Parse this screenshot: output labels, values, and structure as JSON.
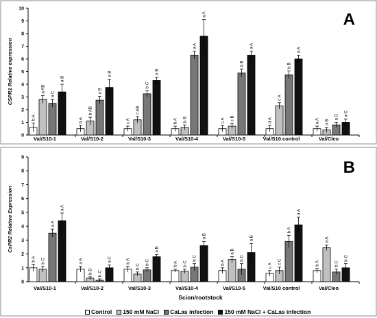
{
  "chart_data": [
    {
      "type": "bar",
      "panel_letter": "A",
      "ylabel": "CSPR1 Relative expression",
      "xlabel": "",
      "ylim": [
        0,
        10
      ],
      "yticks": [
        "0",
        "1",
        "2",
        "3",
        "4",
        "5",
        "6",
        "7",
        "8",
        "9",
        "10"
      ],
      "categories": [
        "Val/S10-1",
        "Val/S10-2",
        "Val/S10-3",
        "Val/S10-4",
        "Val/S10-5",
        "Val/S10 control",
        "Val/Cleo"
      ],
      "series": [
        {
          "name": "Control",
          "values": [
            0.6,
            0.5,
            0.5,
            0.5,
            0.5,
            0.5,
            0.5
          ],
          "errors": [
            0.35,
            0.25,
            0.2,
            0.2,
            0.25,
            0.25,
            0.2
          ],
          "labels": [
            "b A",
            "b A",
            "c A",
            "b A",
            "c A",
            "d A",
            "a A"
          ]
        },
        {
          "name": "150 mM NaCl",
          "values": [
            2.8,
            1.1,
            1.2,
            0.6,
            0.7,
            2.3,
            0.4
          ],
          "errors": [
            0.3,
            0.3,
            0.25,
            0.2,
            0.2,
            0.25,
            0.2
          ],
          "labels": [
            "a AB",
            "b AB",
            "c AB",
            "b B",
            "c B",
            "c A",
            "a B"
          ]
        },
        {
          "name": "CaLas infection",
          "values": [
            2.5,
            2.75,
            3.25,
            6.3,
            4.9,
            4.75,
            0.8
          ],
          "errors": [
            0.3,
            0.3,
            0.25,
            0.3,
            0.3,
            0.3,
            0.2
          ],
          "labels": [
            "a C",
            "a B",
            "b C",
            "a A",
            "b B",
            "b B",
            "a D"
          ]
        },
        {
          "name": "150 mM NaCl + CaLas infection",
          "values": [
            3.4,
            3.75,
            4.3,
            7.8,
            6.3,
            6.0,
            1.0
          ],
          "errors": [
            0.6,
            0.65,
            0.25,
            1.3,
            0.3,
            0.3,
            0.25
          ],
          "labels": [
            "a B",
            "a B",
            "a B",
            "a A",
            "a A",
            "a A",
            "a C"
          ]
        }
      ]
    },
    {
      "type": "bar",
      "panel_letter": "B",
      "ylabel": "CsPR2 Relative Expression",
      "xlabel": "Scion/rootstock",
      "ylim": [
        0,
        9
      ],
      "yticks": [
        "0",
        "1",
        "2",
        "3",
        "4",
        "5",
        "6",
        "7",
        "8",
        "9"
      ],
      "categories": [
        "Val/S10-1",
        "Val/S10-2",
        "Val/S10-3",
        "Val/S10-4",
        "Val/S10-5",
        "Val/S10 control",
        "Val/Cleo"
      ],
      "series": [
        {
          "name": "Control",
          "values": [
            1.0,
            0.9,
            0.9,
            0.8,
            0.8,
            0.6,
            0.8
          ],
          "errors": [
            0.25,
            0.2,
            0.2,
            0.1,
            0.2,
            0.2,
            0.15
          ],
          "labels": [
            "b A",
            "a A",
            "b A",
            "b A",
            "b A",
            "c A",
            "b A"
          ]
        },
        {
          "name": "150 mM NaCl",
          "values": [
            0.9,
            0.25,
            0.55,
            0.75,
            1.6,
            0.8,
            2.45
          ],
          "errors": [
            0.2,
            0.1,
            0.15,
            0.15,
            0.2,
            0.25,
            0.2
          ],
          "labels": [
            "b C",
            "b D",
            "b C",
            "b C",
            "a B",
            "c C",
            "a A"
          ]
        },
        {
          "name": "CaLas infection",
          "values": [
            3.5,
            0.1,
            0.85,
            1.05,
            0.9,
            2.9,
            0.7
          ],
          "errors": [
            0.3,
            0.1,
            0.15,
            0.25,
            0.4,
            0.45,
            0.2
          ],
          "labels": [
            "a A",
            "b C",
            "b C",
            "b C",
            "b C",
            "b A",
            "b C"
          ]
        },
        {
          "name": "150 mM NaCl + CaLas infection",
          "values": [
            4.4,
            1.0,
            1.8,
            2.6,
            2.1,
            4.1,
            1.0
          ],
          "errors": [
            0.55,
            0.2,
            0.15,
            0.3,
            0.65,
            0.55,
            0.3
          ],
          "labels": [
            "a A",
            "a C",
            "a B",
            "a B",
            "a B",
            "a A",
            "b C"
          ]
        }
      ]
    }
  ],
  "legend": {
    "items": [
      {
        "name": "Control",
        "color": "#ffffff"
      },
      {
        "name": "150 mM NaCl",
        "color": "#c0c0c0"
      },
      {
        "name": "CaLas infection",
        "color": "#777777"
      },
      {
        "name": "150 mM NaCl + CaLas infection",
        "color": "#111111"
      }
    ]
  },
  "colors": {
    "series": [
      "#ffffff",
      "#c0c0c0",
      "#777777",
      "#111111"
    ],
    "axis": "#000000",
    "panel_border": "#888888"
  }
}
